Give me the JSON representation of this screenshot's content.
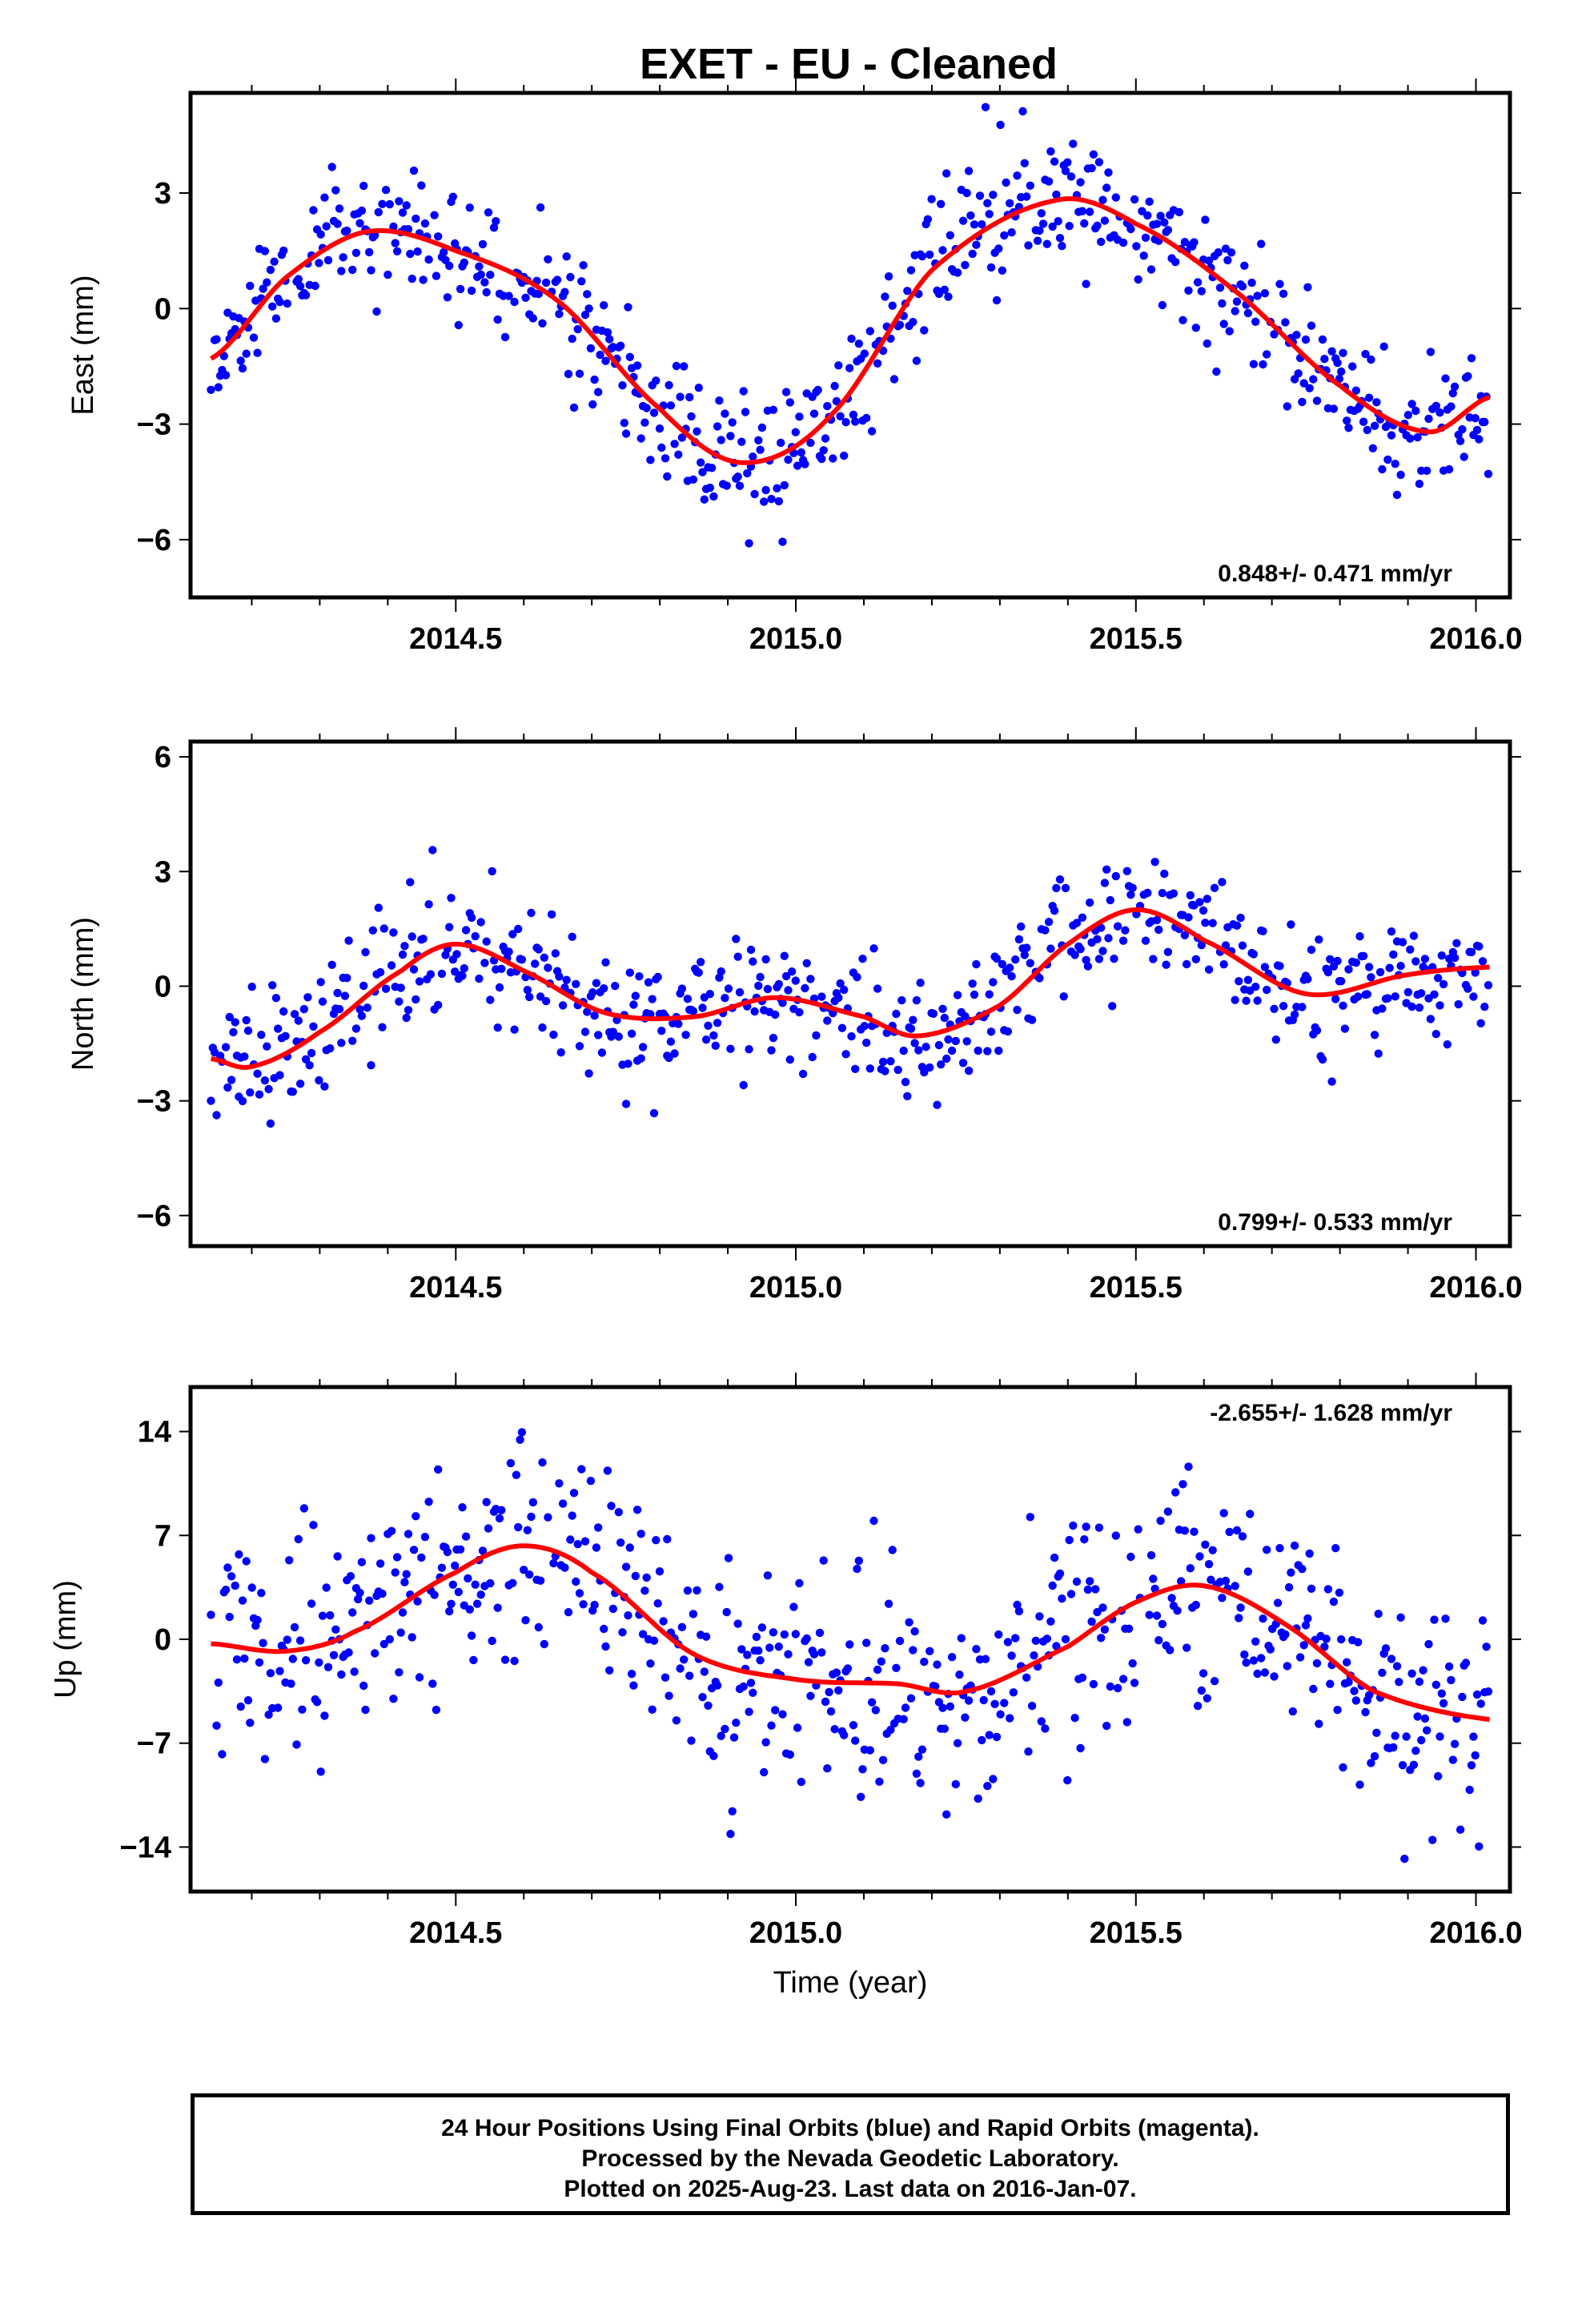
{
  "chart_data": [
    {
      "type": "scatter",
      "title": "EXET  - EU - Cleaned",
      "ylabel": "East (mm)",
      "xlim": [
        2014.11,
        2016.05
      ],
      "ylim": [
        -7.5,
        5.6
      ],
      "xticks": [
        "2014.5",
        "2015.0",
        "2015.5",
        "2016.0"
      ],
      "yticks": [
        "3",
        "0",
        "−3",
        "−6"
      ],
      "ytick_values": [
        3,
        0,
        -3,
        -6
      ],
      "rate_annotation": "0.848+/- 0.471 mm/yr",
      "series": [
        {
          "color": "#0000ff",
          "seed": 11,
          "noise": 0.85,
          "x": [
            2014.14,
            2014.25,
            2014.37,
            2014.5,
            2014.65,
            2014.8,
            2014.92,
            2015.05,
            2015.2,
            2015.38,
            2015.5,
            2015.65,
            2015.8,
            2015.93,
            2016.02
          ],
          "y": [
            -1.3,
            0.8,
            2.0,
            1.5,
            0.2,
            -2.6,
            -4.0,
            -2.8,
            1.0,
            2.8,
            2.2,
            0.4,
            -2.0,
            -3.2,
            -2.3
          ]
        },
        {
          "color": "#ff0000",
          "x": [
            2014.14,
            2014.25,
            2014.37,
            2014.5,
            2014.65,
            2014.8,
            2014.92,
            2015.05,
            2015.2,
            2015.38,
            2015.5,
            2015.65,
            2015.8,
            2015.93,
            2016.02
          ],
          "y": [
            -1.3,
            0.8,
            2.0,
            1.5,
            0.2,
            -2.6,
            -4.0,
            -2.8,
            1.0,
            2.8,
            2.2,
            0.4,
            -2.0,
            -3.2,
            -2.3
          ]
        }
      ]
    },
    {
      "type": "scatter",
      "ylabel": "North (mm)",
      "xlim": [
        2014.11,
        2016.05
      ],
      "ylim": [
        -6.8,
        6.4
      ],
      "xticks": [
        "2014.5",
        "2015.0",
        "2015.5",
        "2016.0"
      ],
      "yticks": [
        "6",
        "3",
        "0",
        "−3",
        "−6"
      ],
      "ytick_values": [
        6,
        3,
        0,
        -3,
        -6
      ],
      "rate_annotation": "0.799+/- 0.533 mm/yr",
      "series": [
        {
          "color": "#0000ff",
          "seed": 23,
          "noise": 0.85,
          "x": [
            2014.14,
            2014.2,
            2014.3,
            2014.42,
            2014.5,
            2014.6,
            2014.72,
            2014.85,
            2014.97,
            2015.1,
            2015.18,
            2015.3,
            2015.4,
            2015.5,
            2015.6,
            2015.75,
            2015.9,
            2016.02
          ],
          "y": [
            -1.9,
            -2.1,
            -1.2,
            0.4,
            1.1,
            0.4,
            -0.7,
            -0.8,
            -0.3,
            -0.8,
            -1.3,
            -0.5,
            1.1,
            2.0,
            1.2,
            -0.2,
            0.3,
            0.5
          ]
        },
        {
          "color": "#ff0000",
          "x": [
            2014.14,
            2014.2,
            2014.3,
            2014.42,
            2014.5,
            2014.6,
            2014.72,
            2014.85,
            2014.97,
            2015.1,
            2015.18,
            2015.3,
            2015.4,
            2015.5,
            2015.6,
            2015.75,
            2015.9,
            2016.02
          ],
          "y": [
            -1.9,
            -2.1,
            -1.2,
            0.4,
            1.1,
            0.4,
            -0.7,
            -0.8,
            -0.3,
            -0.8,
            -1.3,
            -0.5,
            1.1,
            2.0,
            1.2,
            -0.2,
            0.3,
            0.5
          ]
        }
      ]
    },
    {
      "type": "scatter",
      "ylabel": "Up (mm)",
      "xlim": [
        2014.11,
        2016.05
      ],
      "ylim": [
        -17,
        17
      ],
      "xticks": [
        "2014.5",
        "2015.0",
        "2015.5",
        "2016.0"
      ],
      "xlabel": "Time (year)",
      "yticks": [
        "14",
        "7",
        "0",
        "−7",
        "−14"
      ],
      "ytick_values": [
        14,
        7,
        0,
        -7,
        -14
      ],
      "rate_annotation": "-2.655+/- 1.628 mm/yr",
      "series": [
        {
          "color": "#0000ff",
          "seed": 37,
          "noise": 3.6,
          "x": [
            2014.14,
            2014.25,
            2014.35,
            2014.5,
            2014.6,
            2014.7,
            2014.85,
            2015.0,
            2015.15,
            2015.25,
            2015.4,
            2015.5,
            2015.6,
            2015.72,
            2015.85,
            2016.02
          ],
          "y": [
            -0.3,
            -0.8,
            0.5,
            4.5,
            6.3,
            4.5,
            -1.0,
            -2.7,
            -3.0,
            -3.5,
            -0.5,
            2.5,
            3.6,
            1.0,
            -3.5,
            -5.4
          ]
        },
        {
          "color": "#ff0000",
          "x": [
            2014.14,
            2014.25,
            2014.35,
            2014.5,
            2014.6,
            2014.7,
            2014.85,
            2015.0,
            2015.15,
            2015.25,
            2015.4,
            2015.5,
            2015.6,
            2015.72,
            2015.85,
            2016.02
          ],
          "y": [
            -0.3,
            -0.8,
            0.5,
            4.5,
            6.3,
            4.5,
            -1.0,
            -2.7,
            -3.0,
            -3.5,
            -0.5,
            2.5,
            3.6,
            1.0,
            -3.5,
            -5.4
          ]
        }
      ]
    }
  ],
  "footer": {
    "line1": "24 Hour Positions Using Final Orbits (blue) and Rapid Orbits (magenta).",
    "line2": "Processed by the Nevada Geodetic Laboratory.",
    "line3": "Plotted on 2025-Aug-23. Last data on 2016-Jan-07."
  }
}
